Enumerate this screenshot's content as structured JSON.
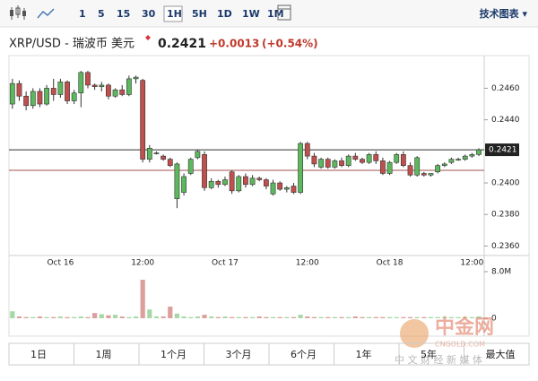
{
  "toolbar": {
    "intervals": [
      "1",
      "5",
      "15",
      "30",
      "1H",
      "5H",
      "1D",
      "1W",
      "1M"
    ],
    "selected": "1H",
    "menu": "技术图表 ▾"
  },
  "header": {
    "symbol": "XRP/USD - 瑞波币 美元",
    "price": 0.2421,
    "change": "+0.0013",
    "change_pct": "(+0.54%)"
  },
  "ranges": [
    "1日",
    "1周",
    "1个月",
    "3个月",
    "6个月",
    "1年",
    "5年",
    "最大值"
  ],
  "watermark": {
    "name": "中金网",
    "site": "CNGOLD.COM",
    "slogan": "中 文 财 经 新 媒 体"
  },
  "chart_data": {
    "type": "candlestick",
    "categories": [
      null,
      null,
      null,
      null,
      null,
      null,
      null,
      "Oct 16",
      null,
      null,
      null,
      null,
      null,
      null,
      null,
      null,
      null,
      null,
      null,
      "12:00",
      null,
      null,
      null,
      null,
      null,
      null,
      null,
      null,
      null,
      null,
      null,
      "Oct 17",
      null,
      null,
      null,
      null,
      null,
      null,
      null,
      null,
      null,
      null,
      null,
      "12:00",
      null,
      null,
      null,
      null,
      null,
      null,
      null,
      null,
      null,
      null,
      null,
      "Oct 18",
      null,
      null,
      null,
      null,
      null,
      null,
      null,
      null,
      null,
      null,
      null,
      "12:00",
      null
    ],
    "open": [
      0.245,
      0.2463,
      0.2455,
      0.2449,
      0.2458,
      0.245,
      0.246,
      0.2456,
      0.2464,
      0.2452,
      0.2457,
      0.247,
      0.2462,
      0.2461,
      0.2462,
      0.2455,
      0.2459,
      0.2456,
      0.2466,
      0.2465,
      0.2415,
      0.2419,
      0.2417,
      0.2415,
      0.239,
      0.2394,
      0.2406,
      0.2416,
      0.2418,
      0.2397,
      0.2401,
      0.2399,
      0.2407,
      0.2395,
      0.2404,
      0.2399,
      0.2403,
      0.2402,
      0.2393,
      0.24,
      0.2396,
      0.2398,
      0.2394,
      0.2425,
      0.2417,
      0.241,
      0.2415,
      0.241,
      0.2414,
      0.2411,
      0.2417,
      0.2415,
      0.2413,
      0.2418,
      0.2414,
      0.2406,
      0.2413,
      0.2418,
      0.2411,
      0.2405,
      0.2406,
      0.2405,
      0.2407,
      0.2411,
      0.2413,
      0.2415,
      0.2415,
      0.2417,
      0.2418
    ],
    "high": [
      0.2466,
      0.2465,
      0.2458,
      0.246,
      0.246,
      0.2462,
      0.2466,
      0.2466,
      0.2465,
      0.2459,
      0.2471,
      0.2471,
      0.2463,
      0.2464,
      0.2463,
      0.246,
      0.2462,
      0.2468,
      0.2468,
      0.2466,
      0.2424,
      0.242,
      0.2418,
      0.2416,
      0.2413,
      0.2406,
      0.2416,
      0.2421,
      0.242,
      0.2403,
      0.2402,
      0.2404,
      0.2408,
      0.2405,
      0.2406,
      0.2405,
      0.2404,
      0.2403,
      0.2402,
      0.2401,
      0.2398,
      0.24,
      0.2426,
      0.2426,
      0.2419,
      0.2416,
      0.2416,
      0.2415,
      0.2416,
      0.2418,
      0.2419,
      0.2416,
      0.2419,
      0.242,
      0.2416,
      0.2414,
      0.2419,
      0.242,
      0.2413,
      0.2417,
      0.2407,
      0.2406,
      0.2412,
      0.2413,
      0.2416,
      0.2416,
      0.2418,
      0.2419,
      0.2422
    ],
    "low": [
      0.2447,
      0.2452,
      0.2446,
      0.2447,
      0.2448,
      0.2449,
      0.2452,
      0.2454,
      0.245,
      0.245,
      0.2448,
      0.246,
      0.2459,
      0.2458,
      0.2453,
      0.2454,
      0.2455,
      0.2455,
      0.2463,
      0.2413,
      0.2413,
      0.2418,
      0.2414,
      0.241,
      0.2384,
      0.2392,
      0.2405,
      0.2415,
      0.2395,
      0.2396,
      0.2397,
      0.2398,
      0.2393,
      0.2394,
      0.2397,
      0.2398,
      0.2401,
      0.2396,
      0.2392,
      0.2395,
      0.2394,
      0.2393,
      0.2393,
      0.2415,
      0.241,
      0.2409,
      0.2409,
      0.2409,
      0.241,
      0.241,
      0.2414,
      0.2412,
      0.2412,
      0.2412,
      0.2405,
      0.2405,
      0.2412,
      0.241,
      0.2404,
      0.2404,
      0.2404,
      0.2404,
      0.2406,
      0.241,
      0.2412,
      0.2414,
      0.2414,
      0.2416,
      0.2417
    ],
    "close": [
      0.2463,
      0.2455,
      0.2449,
      0.2458,
      0.245,
      0.246,
      0.2456,
      0.2464,
      0.2452,
      0.2457,
      0.247,
      0.2462,
      0.2461,
      0.2462,
      0.2455,
      0.2459,
      0.2456,
      0.2466,
      0.2467,
      0.2415,
      0.2422,
      0.2419,
      0.2415,
      0.2411,
      0.2412,
      0.2404,
      0.2415,
      0.242,
      0.2397,
      0.2401,
      0.2399,
      0.2402,
      0.2395,
      0.2404,
      0.2399,
      0.2403,
      0.2402,
      0.2398,
      0.24,
      0.2396,
      0.2397,
      0.2394,
      0.2425,
      0.2417,
      0.2412,
      0.2415,
      0.241,
      0.2414,
      0.2411,
      0.2417,
      0.2415,
      0.2413,
      0.2418,
      0.2414,
      0.2406,
      0.2413,
      0.2418,
      0.2411,
      0.2405,
      0.2416,
      0.2405,
      0.2406,
      0.2411,
      0.2412,
      0.2415,
      0.2415,
      0.2417,
      0.2418,
      0.2421
    ],
    "volume": [
      1200000,
      300000,
      200000,
      200000,
      300000,
      200000,
      200000,
      300000,
      200000,
      200000,
      300000,
      200000,
      900000,
      700000,
      500000,
      600000,
      300000,
      200000,
      300000,
      6600000,
      1500000,
      300000,
      300000,
      2000000,
      800000,
      300000,
      200000,
      300000,
      600000,
      300000,
      200000,
      300000,
      200000,
      200000,
      200000,
      200000,
      300000,
      200000,
      200000,
      200000,
      200000,
      200000,
      600000,
      300000,
      200000,
      200000,
      200000,
      200000,
      200000,
      200000,
      300000,
      200000,
      200000,
      200000,
      200000,
      200000,
      200000,
      200000,
      200000,
      200000,
      200000,
      200000,
      200000,
      200000,
      200000,
      200000,
      200000,
      200000,
      300000
    ],
    "up_color": "#5cb85c",
    "down_color": "#c0504d",
    "ylim": [
      0.2354,
      0.2479
    ],
    "yticks": [
      {
        "value": 0.236,
        "label": "0.2360"
      },
      {
        "value": 0.238,
        "label": "0.2380"
      },
      {
        "value": 0.24,
        "label": "0.2400"
      },
      {
        "value": 0.244,
        "label": "0.2440"
      },
      {
        "value": 0.246,
        "label": "0.2460"
      }
    ],
    "prev_close": 0.2408,
    "vlim": [
      0,
      8000000
    ],
    "vticks": [
      0,
      {
        "value": 8000000,
        "label": "8.0M"
      }
    ]
  }
}
